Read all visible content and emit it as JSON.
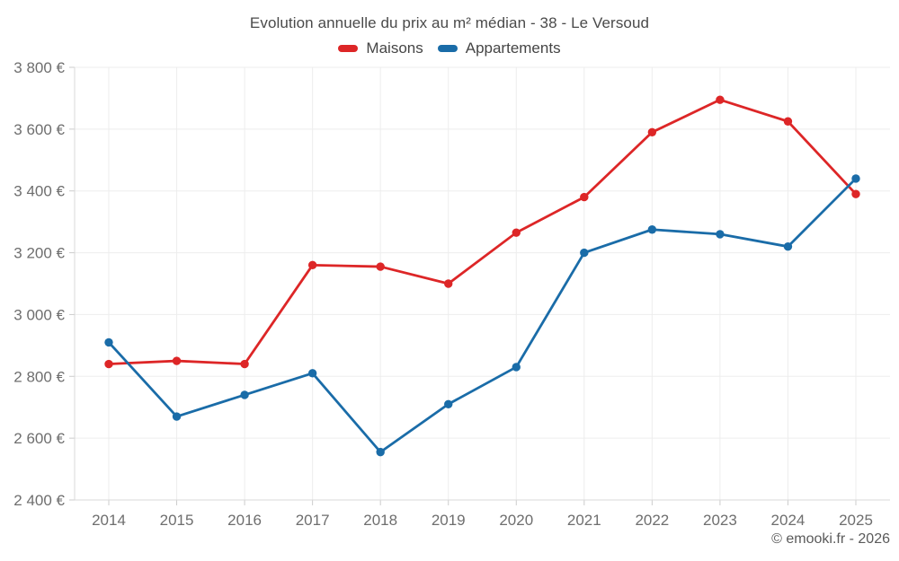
{
  "footer": {
    "copyright": "© emooki.fr - 2026"
  },
  "chart_data": {
    "type": "line",
    "title": "Evolution annuelle du prix au m² médian - 38 - Le Versoud",
    "categories": [
      "2014",
      "2015",
      "2016",
      "2017",
      "2018",
      "2019",
      "2020",
      "2021",
      "2022",
      "2023",
      "2024",
      "2025"
    ],
    "series": [
      {
        "name": "Maisons",
        "color": "#dd2627",
        "values": [
          2840,
          2850,
          2840,
          3160,
          3155,
          3100,
          3265,
          3380,
          3590,
          3695,
          3625,
          3390
        ]
      },
      {
        "name": "Appartements",
        "color": "#1a6ca8",
        "values": [
          2910,
          2670,
          2740,
          2810,
          2555,
          2710,
          2830,
          3200,
          3275,
          3260,
          3220,
          3440
        ]
      }
    ],
    "xlabel": "",
    "ylabel": "",
    "ylim": [
      2400,
      3800
    ],
    "ytick_step": 200,
    "ytick_suffix": " €",
    "grid": true,
    "legend_position": "top",
    "colors": {
      "grid": "#ededed",
      "axis": "#d9d9d9",
      "tick": "#cccccc",
      "axis_text": "#6e6e6e"
    }
  }
}
